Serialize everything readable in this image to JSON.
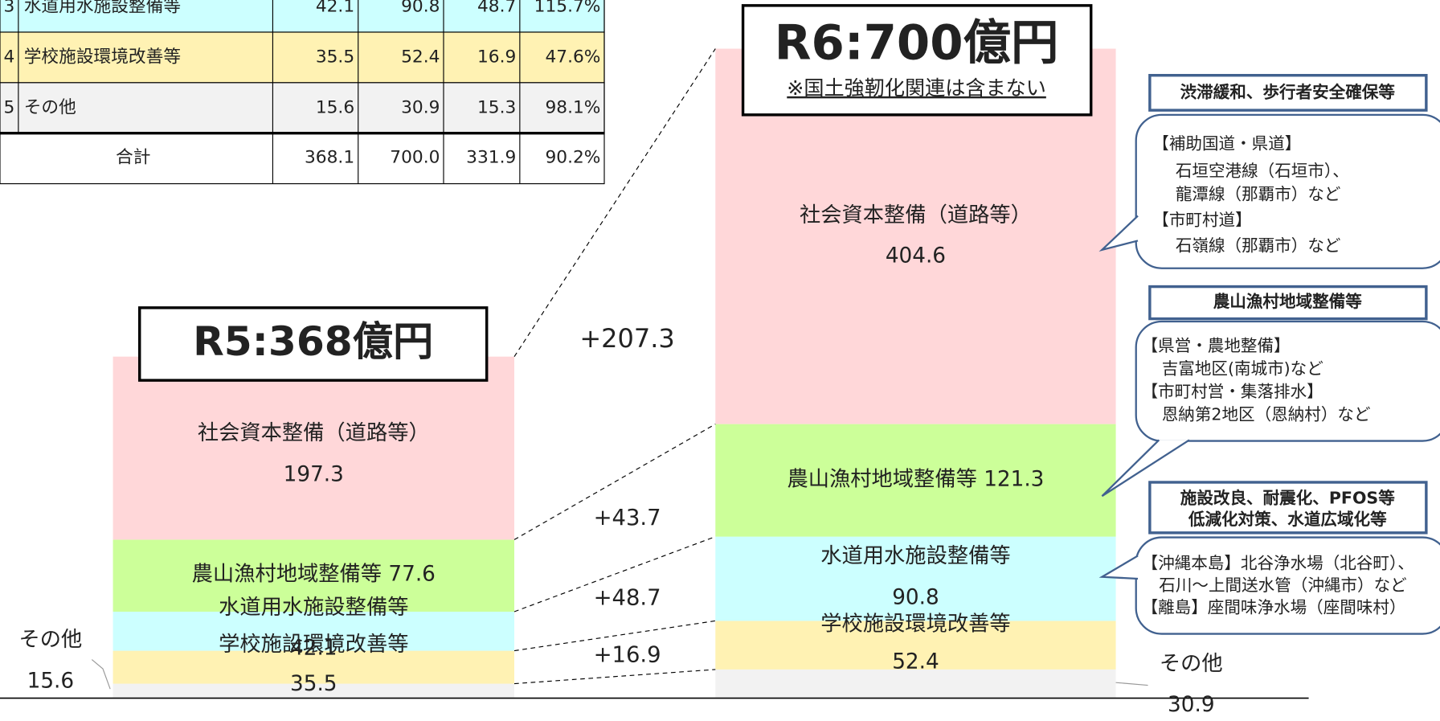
{
  "table": {
    "rows": [
      [
        "3",
        "水道用水施設整備等",
        "42.1",
        "90.8",
        "48.7",
        "115.7%"
      ],
      [
        "4",
        "学校施設環境改善等",
        "35.5",
        "52.4",
        "16.9",
        "47.6%"
      ],
      [
        "5",
        "その他",
        "15.6",
        "30.9",
        "15.3",
        "98.1%"
      ]
    ],
    "total": [
      "合計",
      "368.1",
      "700.0",
      "331.9",
      "90.2%"
    ]
  },
  "chart_data": {
    "type": "stacked_bar",
    "bar_titles": [
      "R5:368億円",
      "R6:700億円"
    ],
    "subtitle": "※国土強靭化関連は含まない",
    "series": [
      {
        "name": "社会資本整備（道路等）",
        "color": "#ffd7d9",
        "values": [
          197.3,
          404.6
        ]
      },
      {
        "name": "農山漁村地域整備等",
        "color": "#ccff99",
        "values": [
          77.6,
          121.3
        ]
      },
      {
        "name": "水道用水施設整備等",
        "color": "#ccffff",
        "values": [
          42.1,
          90.8
        ]
      },
      {
        "name": "学校施設環境改善等",
        "color": "#fff2b3",
        "values": [
          35.5,
          52.4
        ]
      },
      {
        "name": "その他",
        "color": "#f2f2f2",
        "values": [
          15.6,
          30.9
        ]
      }
    ],
    "ylim": [
      0,
      700
    ],
    "difference_labels": [
      "+207.3",
      "+43.7",
      "+48.7",
      "+16.9"
    ]
  },
  "callouts": [
    {
      "header": [
        "渋滞緩和、歩行者安全確保等"
      ],
      "lines": [
        "【補助国道・県道】",
        "石垣空港線（石垣市）、",
        "龍潭線（那覇市）など",
        "【市町村道】",
        "石嶺線（那覇市）など"
      ]
    },
    {
      "header": [
        "農山漁村地域整備等"
      ],
      "lines": [
        "【県営・農地整備】",
        "吉富地区(南城市)など",
        "【市町村営・集落排水】",
        "恩納第2地区（恩納村）など"
      ]
    },
    {
      "header": [
        "施設改良、耐震化、PFOS等",
        "低減化対策、水道広域化等"
      ],
      "lines": [
        "【沖縄本島】北谷浄水場（北谷町）、",
        "石川～上間送水管（沖縄市）など",
        "【離島】座間味浄水場（座間味村）"
      ]
    }
  ]
}
